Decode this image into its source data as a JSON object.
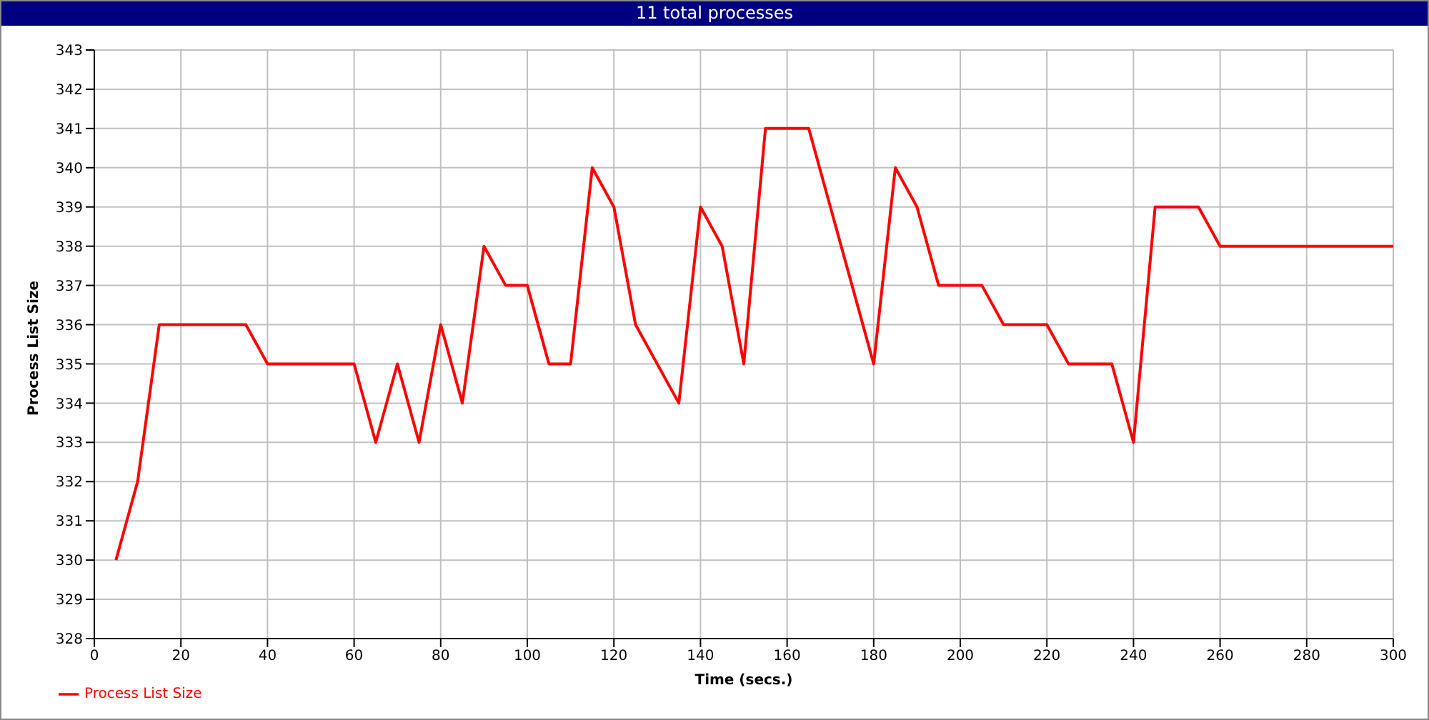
{
  "chart_data": {
    "type": "line",
    "title": "11 total processes",
    "xlabel": "Time (secs.)",
    "ylabel": "Process List Size",
    "x": [
      5,
      10,
      15,
      20,
      25,
      30,
      35,
      40,
      45,
      50,
      55,
      60,
      65,
      70,
      75,
      80,
      85,
      90,
      95,
      100,
      105,
      110,
      115,
      120,
      125,
      130,
      135,
      140,
      145,
      150,
      155,
      160,
      165,
      170,
      175,
      180,
      185,
      190,
      195,
      200,
      205,
      210,
      215,
      220,
      225,
      230,
      235,
      240,
      245,
      250,
      255,
      260,
      265,
      270,
      275,
      280,
      285,
      290,
      295,
      300
    ],
    "series": [
      {
        "name": "Process List Size",
        "color": "#ff0000",
        "values": [
          330,
          332,
          336,
          336,
          336,
          336,
          336,
          335,
          335,
          335,
          335,
          335,
          333,
          335,
          333,
          336,
          334,
          338,
          337,
          337,
          335,
          335,
          340,
          339,
          336,
          335,
          334,
          339,
          338,
          335,
          341,
          341,
          341,
          339,
          337,
          335,
          340,
          339,
          337,
          337,
          337,
          336,
          336,
          336,
          335,
          335,
          335,
          333,
          339,
          339,
          339,
          338,
          338,
          338,
          338,
          338,
          338,
          338,
          338,
          338
        ]
      }
    ],
    "xlim": [
      0,
      300
    ],
    "xticks": [
      0,
      20,
      40,
      60,
      80,
      100,
      120,
      140,
      160,
      180,
      200,
      220,
      240,
      260,
      280,
      300
    ],
    "ylim": [
      328,
      343
    ],
    "yticks": [
      328,
      329,
      330,
      331,
      332,
      333,
      334,
      335,
      336,
      337,
      338,
      339,
      340,
      341,
      342,
      343
    ],
    "grid": true,
    "legend": "bottom left",
    "marker": "none",
    "line_style": "solid"
  }
}
